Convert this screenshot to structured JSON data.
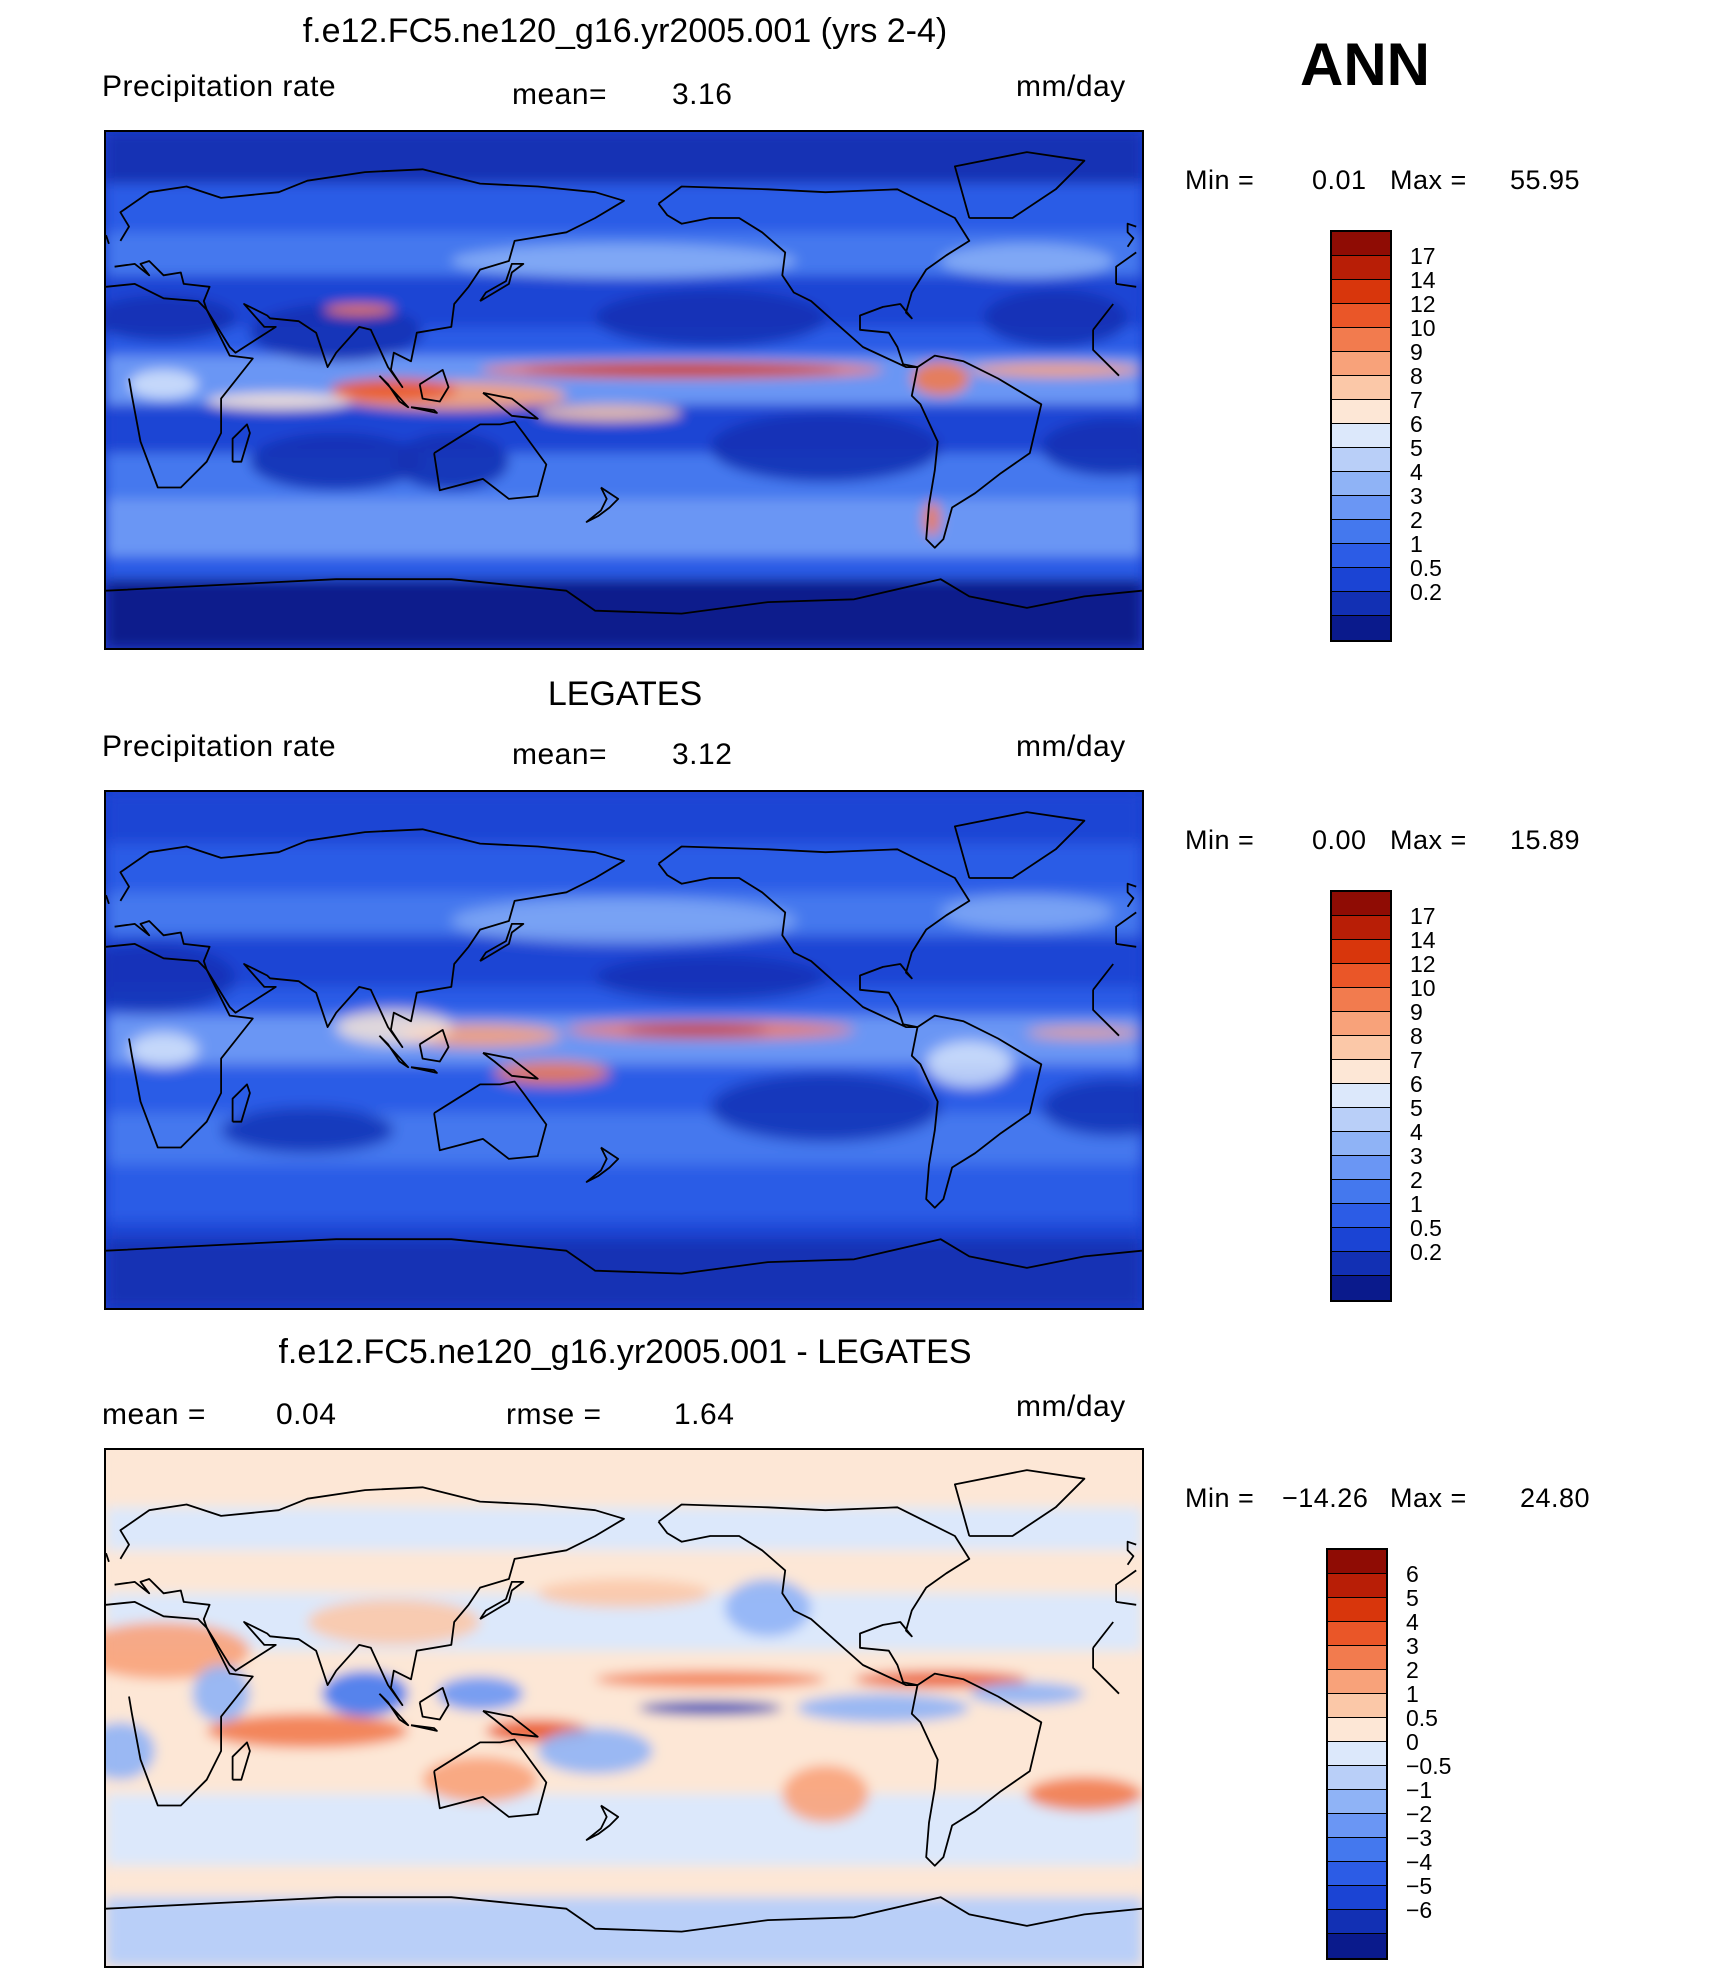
{
  "season": "ANN",
  "palettes": {
    "precip": [
      "#0a1a8c",
      "#1230b4",
      "#1b44d4",
      "#2c5ce6",
      "#4478ee",
      "#6a96f4",
      "#8fb3f6",
      "#b9cff8",
      "#dce8fb",
      "#fde7d6",
      "#fbc8a8",
      "#f8a27a",
      "#f27b4e",
      "#ea5628",
      "#d8360c",
      "#b81e06",
      "#8f0c04"
    ],
    "diff": [
      "#0a1a8c",
      "#1230b4",
      "#1b44d4",
      "#2c5ce6",
      "#4478ee",
      "#6a96f4",
      "#8fb3f6",
      "#b9cff8",
      "#dce8fb",
      "#fde7d6",
      "#fbc8a8",
      "#f8a27a",
      "#f27b4e",
      "#ea5628",
      "#d8360c",
      "#b81e06",
      "#8f0c04"
    ]
  },
  "chart_data": [
    {
      "type": "heatmap",
      "title": "f.e12.FC5.ne120_g16.yr2005.001 (yrs 2-4)",
      "left_label": "Precipitation  rate",
      "mean_label": "mean=",
      "mean_value": "3.16",
      "units": "mm/day",
      "min_label": "Min  =",
      "min_value": "0.01",
      "max_label": "Max  =",
      "max_value": "55.95",
      "colorbar_levels": [
        "17",
        "14",
        "12",
        "10",
        "9",
        "8",
        "7",
        "6",
        "5",
        "4",
        "3",
        "2",
        "1",
        "0.5",
        "0.2"
      ]
    },
    {
      "type": "heatmap",
      "title": "LEGATES",
      "left_label": "Precipitation  rate",
      "mean_label": "mean=",
      "mean_value": "3.12",
      "units": "mm/day",
      "min_label": "Min  =",
      "min_value": "0.00",
      "max_label": "Max  =",
      "max_value": "15.89",
      "colorbar_levels": [
        "17",
        "14",
        "12",
        "10",
        "9",
        "8",
        "7",
        "6",
        "5",
        "4",
        "3",
        "2",
        "1",
        "0.5",
        "0.2"
      ]
    },
    {
      "type": "heatmap",
      "title": "f.e12.FC5.ne120_g16.yr2005.001 - LEGATES",
      "left_label": "mean  =",
      "mean_label": "",
      "mean_value": "0.04",
      "rmse_label": "rmse  =",
      "rmse_value": "1.64",
      "units": "mm/day",
      "min_label": "Min  =",
      "min_value": "−14.26",
      "max_label": "Max  =",
      "max_value": "24.80",
      "colorbar_levels": [
        "6",
        "5",
        "4",
        "3",
        "2",
        "1",
        "0.5",
        "0",
        "−0.5",
        "−1",
        "−2",
        "−3",
        "−4",
        "−5",
        "−6"
      ]
    }
  ]
}
